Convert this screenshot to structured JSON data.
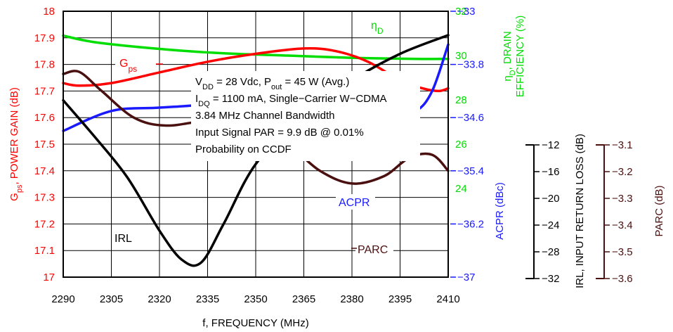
{
  "chart_data": {
    "type": "line",
    "xlabel": "f, FREQUENCY (MHz)",
    "x_ticks": [
      2290,
      2305,
      2320,
      2335,
      2350,
      2365,
      2380,
      2395,
      2410
    ],
    "xlim": [
      2290,
      2410
    ],
    "grid": true,
    "colors": {
      "gps": "#ff0000",
      "eta": "#00dd00",
      "acpr": "#1a1aff",
      "irl": "#000000",
      "parc": "#4a1010"
    },
    "axes": {
      "gps": {
        "label_main": "G",
        "label_sub": "ps",
        "label_rest": ", POWER GAIN (dB)",
        "ylim": [
          17,
          18
        ],
        "ticks": [
          "17",
          "17.1",
          "17.2",
          "17.3",
          "17.4",
          "17.5",
          "17.6",
          "17.7",
          "17.8",
          "17.9",
          "18"
        ]
      },
      "eta": {
        "label_line1_main": "η",
        "label_line1_sub": "D",
        "label_line1_rest": ", DRAIN",
        "label_line2": "EFFICIENCY (%)",
        "ylim": [
          20,
          32
        ],
        "ticks": [
          "24",
          "26",
          "28",
          "30",
          "32"
        ]
      },
      "acpr": {
        "label": "ACPR (dBc)",
        "ylim": [
          -37,
          -33
        ],
        "ticks": [
          "-33",
          "-33.8",
          "-34.6",
          "-35.4",
          "-36.2",
          "-37"
        ]
      },
      "irl": {
        "label": "IRL, INPUT RETURN LOSS (dB)",
        "ylim": [
          -32,
          -12
        ],
        "ticks": [
          "-12",
          "-16",
          "-20",
          "-24",
          "-28",
          "-32"
        ]
      },
      "parc": {
        "label": "PARC (dB)",
        "ylim": [
          -3.6,
          -3.1
        ],
        "ticks": [
          "-3.1",
          "-3.2",
          "-3.3",
          "-3.4",
          "-3.5",
          "-3.6"
        ]
      }
    },
    "series": [
      {
        "name": "ηD",
        "axis": "eta",
        "x": [
          2290,
          2300,
          2320,
          2340,
          2360,
          2380,
          2400,
          2410
        ],
        "y": [
          30.9,
          30.6,
          30.3,
          30.1,
          30.0,
          29.9,
          29.85,
          29.85
        ]
      },
      {
        "name": "Gps",
        "axis": "gps",
        "x": [
          2290,
          2295,
          2305,
          2320,
          2335,
          2350,
          2365,
          2375,
          2385,
          2395,
          2402,
          2407,
          2410
        ],
        "y": [
          17.73,
          17.72,
          17.73,
          17.77,
          17.81,
          17.84,
          17.86,
          17.85,
          17.81,
          17.74,
          17.71,
          17.7,
          17.71
        ]
      },
      {
        "name": "ACPR",
        "axis": "acpr",
        "x": [
          2290,
          2305,
          2320,
          2335,
          2350,
          2365,
          2375,
          2385,
          2393,
          2400,
          2405,
          2410
        ],
        "y": [
          -34.8,
          -34.5,
          -34.45,
          -34.4,
          -34.3,
          -34.2,
          -34.3,
          -34.5,
          -34.55,
          -34.5,
          -34.2,
          -33.5
        ]
      },
      {
        "name": "IRL",
        "axis": "irl",
        "x": [
          2290,
          2300,
          2310,
          2320,
          2327,
          2333,
          2340,
          2350,
          2365,
          2380,
          2395,
          2410
        ],
        "y": [
          -18.7,
          -21.5,
          -24.5,
          -28.5,
          -30.7,
          -30.9,
          -28,
          -23.5,
          -19.8,
          -17.2,
          -15.2,
          -13.8
        ]
      },
      {
        "name": "PARC",
        "axis": "parc",
        "x": [
          2290,
          2295,
          2302,
          2312,
          2322,
          2335,
          2348,
          2360,
          2370,
          2380,
          2390,
          2398,
          2405,
          2410
        ],
        "y": [
          -3.218,
          -3.214,
          -3.25,
          -3.3,
          -3.315,
          -3.306,
          -3.31,
          -3.35,
          -3.4,
          -3.424,
          -3.41,
          -3.375,
          -3.37,
          -3.4
        ]
      }
    ],
    "annotations": {
      "gps": {
        "main": "G",
        "sub": "ps"
      },
      "eta": {
        "main": "η",
        "sub": "D"
      },
      "acpr": "ACPR",
      "irl": "IRL",
      "parc": "PARC"
    },
    "info_lines": [
      {
        "parts": [
          [
            "V",
            ""
          ],
          [
            "DD",
            "sub"
          ],
          [
            " = 28 Vdc, P",
            ""
          ],
          [
            "out",
            "sub"
          ],
          [
            " = 45 W (Avg.)",
            ""
          ]
        ]
      },
      {
        "parts": [
          [
            "I",
            ""
          ],
          [
            "DQ",
            "sub"
          ],
          [
            " = 1100 mA, Single−Carrier W−CDMA",
            ""
          ]
        ]
      },
      {
        "parts": [
          [
            "3.84 MHz Channel Bandwidth",
            ""
          ]
        ]
      },
      {
        "parts": [
          [
            "Input Signal PAR = 9.9 dB @ 0.01%",
            ""
          ]
        ]
      },
      {
        "parts": [
          [
            "Probability on CCDF",
            ""
          ]
        ]
      }
    ]
  }
}
